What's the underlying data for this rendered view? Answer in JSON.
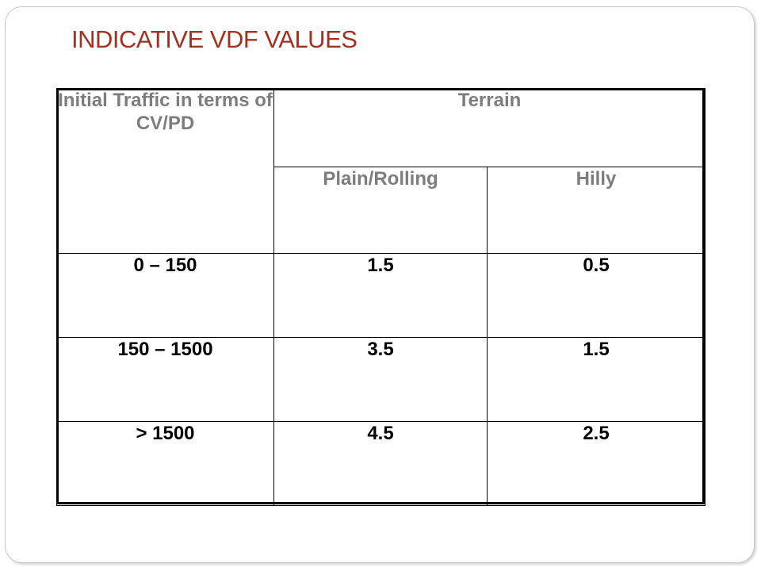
{
  "slide": {
    "title": "INDICATIVE VDF VALUES",
    "title_color": "#a03223"
  },
  "table": {
    "header": {
      "traffic_col": "Initial Traffic in terms of CV/PD",
      "terrain_group": "Terrain",
      "terrain_cols": [
        "Plain/Rolling",
        "Hilly"
      ]
    },
    "rows": [
      {
        "traffic": "0 – 150",
        "plain_rolling": "1.5",
        "hilly": "0.5"
      },
      {
        "traffic": "150 – 1500",
        "plain_rolling": "3.5",
        "hilly": "1.5"
      },
      {
        "traffic": "> 1500",
        "plain_rolling": "4.5",
        "hilly": "2.5"
      }
    ],
    "header_text_color": "#7d7d7d"
  }
}
